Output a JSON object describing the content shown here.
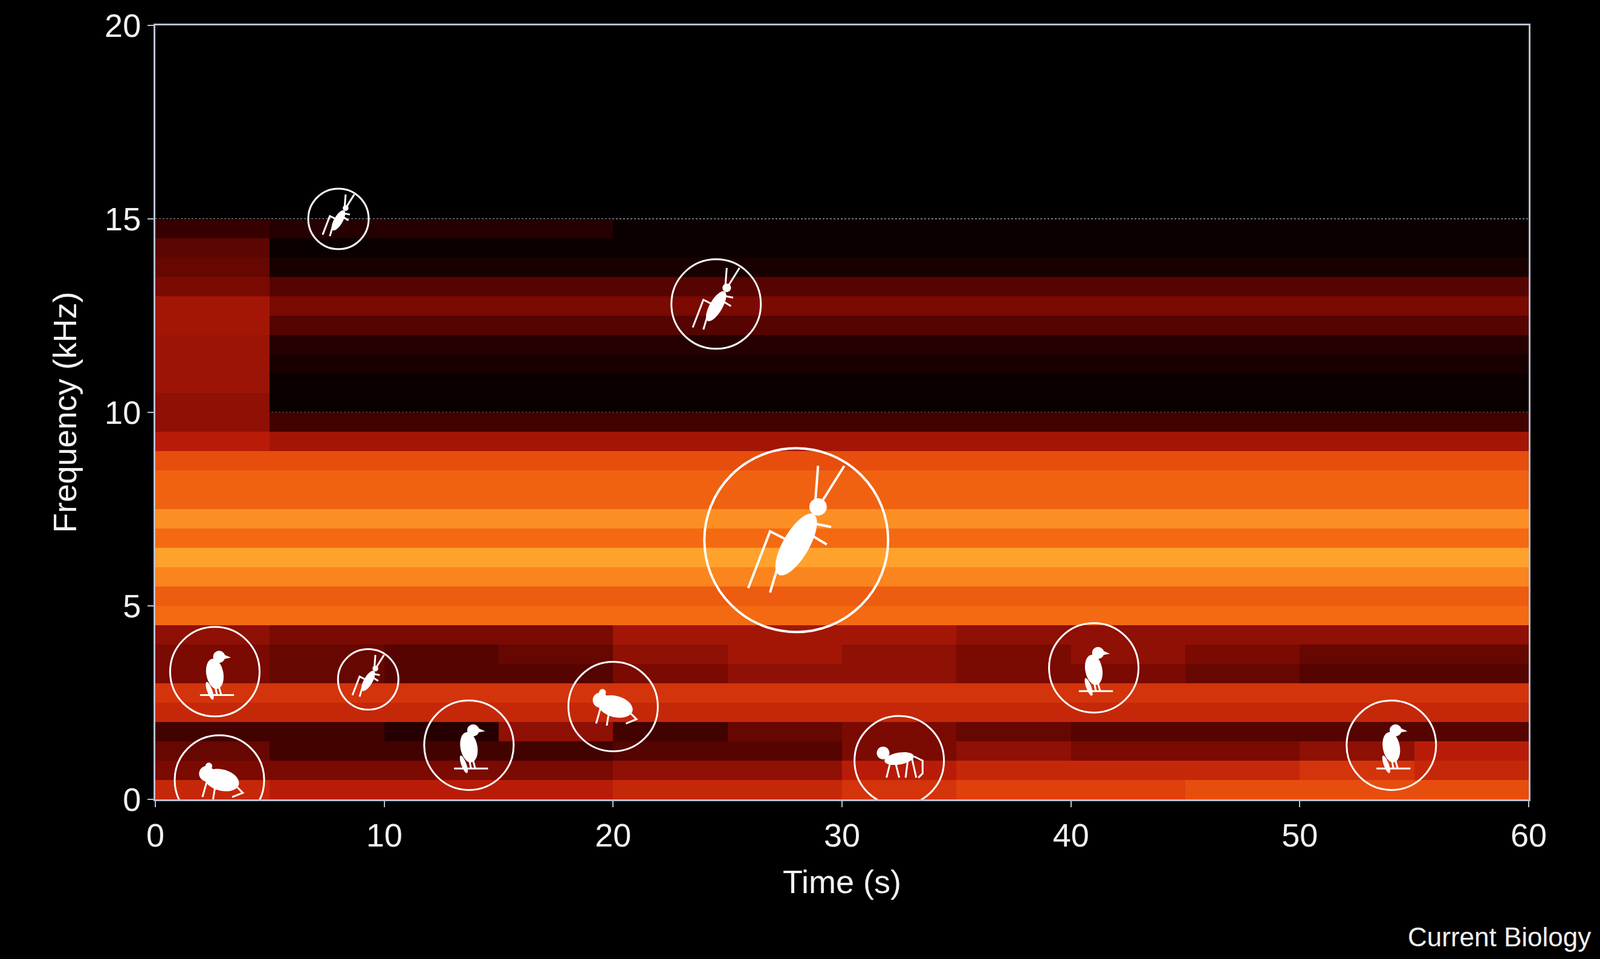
{
  "chart_data": {
    "type": "heatmap",
    "x_label": "Time (s)",
    "y_label": "Frequency (kHz)",
    "source": "Current Biology",
    "xlim": [
      0,
      60
    ],
    "ylim": [
      0,
      20
    ],
    "xticks": [
      0,
      10,
      20,
      30,
      40,
      50,
      60
    ],
    "yticks": [
      0,
      5,
      10,
      15,
      20
    ],
    "grid": "y",
    "zlim": [
      0,
      1
    ],
    "x": [
      2.5,
      7.5,
      12.5,
      17.5,
      22.5,
      27.5,
      32.5,
      37.5,
      42.5,
      47.5,
      52.5,
      57.5
    ],
    "y": [
      0.25,
      0.75,
      1.25,
      1.75,
      2.25,
      2.75,
      3.25,
      3.75,
      4.25,
      4.75,
      5.25,
      5.75,
      6.25,
      6.75,
      7.25,
      7.75,
      8.25,
      8.75,
      9.25,
      9.75,
      10.25,
      10.75,
      11.25,
      11.75,
      12.25,
      12.75,
      13.25,
      13.75,
      14.25,
      14.75
    ],
    "z": [
      [
        0.5,
        0.45,
        0.45,
        0.45,
        0.5,
        0.5,
        0.55,
        0.6,
        0.6,
        0.65,
        0.65,
        0.65
      ],
      [
        0.3,
        0.3,
        0.3,
        0.3,
        0.35,
        0.35,
        0.45,
        0.5,
        0.5,
        0.5,
        0.55,
        0.5
      ],
      [
        0.25,
        0.15,
        0.15,
        0.15,
        0.2,
        0.2,
        0.3,
        0.35,
        0.3,
        0.3,
        0.35,
        0.45
      ],
      [
        0.15,
        0.15,
        0.1,
        0.35,
        0.15,
        0.25,
        0.3,
        0.25,
        0.2,
        0.2,
        0.2,
        0.2
      ],
      [
        0.5,
        0.5,
        0.5,
        0.5,
        0.5,
        0.5,
        0.5,
        0.5,
        0.5,
        0.5,
        0.5,
        0.5
      ],
      [
        0.55,
        0.55,
        0.55,
        0.55,
        0.55,
        0.55,
        0.55,
        0.55,
        0.55,
        0.55,
        0.55,
        0.55
      ],
      [
        0.3,
        0.25,
        0.2,
        0.2,
        0.3,
        0.35,
        0.35,
        0.3,
        0.3,
        0.25,
        0.2,
        0.2
      ],
      [
        0.3,
        0.25,
        0.2,
        0.25,
        0.35,
        0.4,
        0.35,
        0.3,
        0.35,
        0.3,
        0.25,
        0.25
      ],
      [
        0.35,
        0.3,
        0.3,
        0.3,
        0.4,
        0.4,
        0.4,
        0.35,
        0.35,
        0.35,
        0.35,
        0.35
      ],
      [
        0.75,
        0.75,
        0.75,
        0.75,
        0.75,
        0.75,
        0.75,
        0.75,
        0.75,
        0.75,
        0.75,
        0.75
      ],
      [
        0.7,
        0.7,
        0.7,
        0.7,
        0.7,
        0.7,
        0.7,
        0.7,
        0.7,
        0.7,
        0.7,
        0.7
      ],
      [
        0.82,
        0.82,
        0.82,
        0.82,
        0.82,
        0.82,
        0.82,
        0.82,
        0.82,
        0.82,
        0.82,
        0.82
      ],
      [
        0.9,
        0.9,
        0.9,
        0.9,
        0.9,
        0.9,
        0.9,
        0.9,
        0.9,
        0.9,
        0.9,
        0.9
      ],
      [
        0.75,
        0.75,
        0.75,
        0.75,
        0.75,
        0.75,
        0.75,
        0.75,
        0.75,
        0.75,
        0.75,
        0.75
      ],
      [
        0.85,
        0.85,
        0.85,
        0.85,
        0.85,
        0.85,
        0.85,
        0.85,
        0.85,
        0.85,
        0.85,
        0.85
      ],
      [
        0.72,
        0.72,
        0.72,
        0.72,
        0.72,
        0.72,
        0.72,
        0.72,
        0.72,
        0.72,
        0.72,
        0.72
      ],
      [
        0.72,
        0.72,
        0.72,
        0.72,
        0.72,
        0.72,
        0.72,
        0.72,
        0.72,
        0.72,
        0.72,
        0.72
      ],
      [
        0.65,
        0.65,
        0.65,
        0.65,
        0.65,
        0.65,
        0.65,
        0.65,
        0.65,
        0.65,
        0.65,
        0.65
      ],
      [
        0.45,
        0.4,
        0.4,
        0.4,
        0.4,
        0.4,
        0.4,
        0.4,
        0.4,
        0.4,
        0.4,
        0.4
      ],
      [
        0.35,
        0.15,
        0.15,
        0.15,
        0.15,
        0.15,
        0.15,
        0.15,
        0.15,
        0.15,
        0.15,
        0.15
      ],
      [
        0.35,
        0.05,
        0.05,
        0.05,
        0.05,
        0.05,
        0.05,
        0.05,
        0.05,
        0.05,
        0.05,
        0.05
      ],
      [
        0.38,
        0.05,
        0.05,
        0.05,
        0.05,
        0.05,
        0.05,
        0.05,
        0.05,
        0.05,
        0.05,
        0.05
      ],
      [
        0.38,
        0.08,
        0.08,
        0.08,
        0.08,
        0.08,
        0.08,
        0.08,
        0.08,
        0.08,
        0.08,
        0.08
      ],
      [
        0.38,
        0.1,
        0.1,
        0.1,
        0.1,
        0.1,
        0.1,
        0.1,
        0.1,
        0.1,
        0.1,
        0.1
      ],
      [
        0.4,
        0.2,
        0.2,
        0.2,
        0.2,
        0.2,
        0.2,
        0.2,
        0.2,
        0.2,
        0.2,
        0.2
      ],
      [
        0.4,
        0.3,
        0.3,
        0.3,
        0.3,
        0.3,
        0.3,
        0.3,
        0.3,
        0.3,
        0.3,
        0.3
      ],
      [
        0.3,
        0.2,
        0.2,
        0.2,
        0.2,
        0.2,
        0.2,
        0.2,
        0.2,
        0.2,
        0.2,
        0.2
      ],
      [
        0.25,
        0.08,
        0.08,
        0.08,
        0.08,
        0.08,
        0.08,
        0.08,
        0.08,
        0.08,
        0.08,
        0.08
      ],
      [
        0.22,
        0.05,
        0.05,
        0.05,
        0.05,
        0.05,
        0.05,
        0.05,
        0.05,
        0.05,
        0.05,
        0.05
      ],
      [
        0.12,
        0.1,
        0.1,
        0.1,
        0.05,
        0.05,
        0.05,
        0.05,
        0.05,
        0.05,
        0.05,
        0.05
      ]
    ],
    "icons": [
      {
        "kind": "insect",
        "x": 8,
        "y": 15,
        "marker": "small"
      },
      {
        "kind": "insect",
        "x": 24.5,
        "y": 12.8,
        "marker": "medium"
      },
      {
        "kind": "insect",
        "x": 28,
        "y": 6.7,
        "marker": "large"
      },
      {
        "kind": "insect",
        "x": 9.3,
        "y": 3.1,
        "marker": "small"
      },
      {
        "kind": "bird",
        "x": 2.6,
        "y": 3.3,
        "marker": "medium"
      },
      {
        "kind": "frog",
        "x": 2.8,
        "y": 0.5,
        "marker": "medium"
      },
      {
        "kind": "bird",
        "x": 13.7,
        "y": 1.4,
        "marker": "medium"
      },
      {
        "kind": "frog",
        "x": 20,
        "y": 2.4,
        "marker": "medium"
      },
      {
        "kind": "monkey",
        "x": 32.5,
        "y": 1.0,
        "marker": "medium"
      },
      {
        "kind": "bird",
        "x": 41,
        "y": 3.4,
        "marker": "medium"
      },
      {
        "kind": "bird",
        "x": 54,
        "y": 1.4,
        "marker": "medium"
      }
    ]
  }
}
